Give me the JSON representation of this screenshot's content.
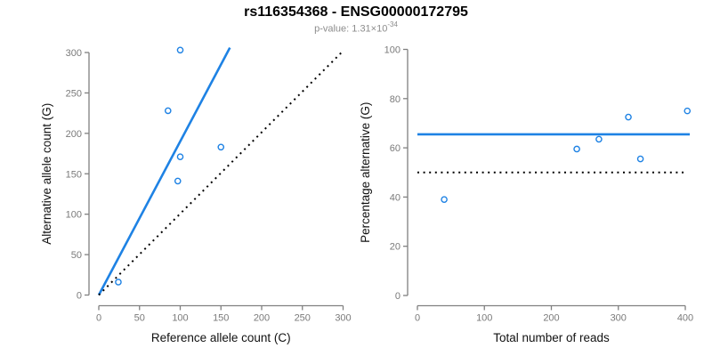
{
  "header": {
    "title": "rs116354368 - ENSG00000172795",
    "subtitle_prefix": "p-value: 1.31×10",
    "subtitle_exponent": "-34"
  },
  "colors": {
    "accent": "#1e82e4",
    "dotted_line": "#000000",
    "axis": "#808080",
    "tick_label": "#7a7a7a",
    "axis_title": "#111111",
    "title": "#000000",
    "subtitle": "#8c8c8c",
    "background": "#ffffff"
  },
  "chart_data": [
    {
      "type": "scatter",
      "xlabel": "Reference allele count (C)",
      "ylabel": "Alternative allele count (G)",
      "xlim": [
        0,
        300
      ],
      "ylim": [
        0,
        300
      ],
      "xticks": [
        0,
        50,
        100,
        150,
        200,
        250,
        300
      ],
      "yticks": [
        0,
        50,
        100,
        150,
        200,
        250,
        300
      ],
      "grid": false,
      "points": [
        [
          24,
          16
        ],
        [
          85,
          228
        ],
        [
          97,
          141
        ],
        [
          100,
          171
        ],
        [
          100,
          303
        ],
        [
          150,
          183
        ]
      ],
      "lines": [
        {
          "name": "fitted-allelic-ratio-line",
          "style": "solid",
          "from": [
            0,
            0
          ],
          "to": [
            161,
            306
          ]
        },
        {
          "name": "identity-line",
          "style": "dotted",
          "from": [
            0,
            0
          ],
          "to": [
            301,
            303
          ]
        }
      ]
    },
    {
      "type": "scatter",
      "xlabel": "Total number of reads",
      "ylabel": "Percentage alternative (G)",
      "xlim": [
        0,
        400
      ],
      "ylim": [
        0,
        100
      ],
      "xticks": [
        0,
        100,
        200,
        300,
        400
      ],
      "yticks": [
        0,
        20,
        40,
        60,
        80,
        100
      ],
      "grid": false,
      "points": [
        [
          40,
          39
        ],
        [
          238,
          59.5
        ],
        [
          271,
          63.5
        ],
        [
          315,
          72.5
        ],
        [
          333,
          55.5
        ],
        [
          403,
          75
        ]
      ],
      "lines": [
        {
          "name": "mean-percentage-line",
          "style": "solid",
          "y": 65.5
        },
        {
          "name": "expected-50-percent-line",
          "style": "dotted",
          "y": 50
        }
      ]
    }
  ]
}
